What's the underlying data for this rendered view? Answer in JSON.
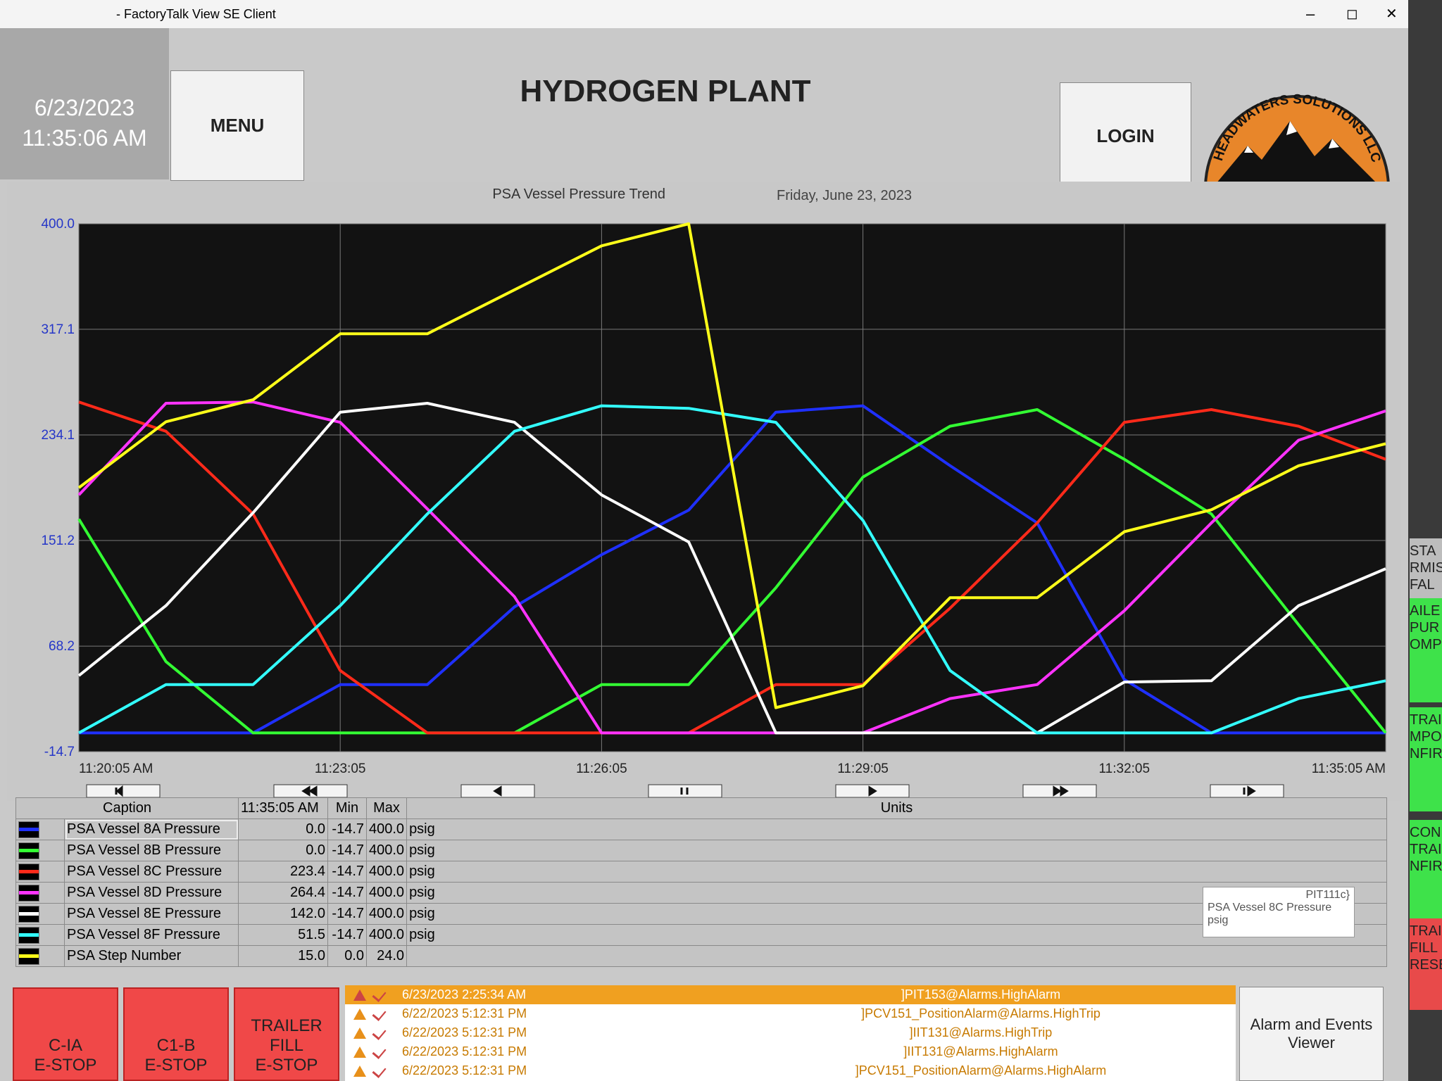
{
  "window": {
    "title": "- FactoryTalk View SE Client"
  },
  "header": {
    "date": "6/23/2023",
    "time": "11:35:06 AM",
    "menu": "MENU",
    "title": "HYDROGEN PLANT",
    "login": "LOGIN",
    "logo": "HEADWATERS SOLUTIONS LLC"
  },
  "chart_data": {
    "type": "line",
    "title": "PSA Vessel Pressure Trend",
    "subtitle": "Friday, June 23, 2023",
    "x": [
      "11:20:05",
      "11:21:05",
      "11:22:05",
      "11:23:05",
      "11:24:05",
      "11:25:05",
      "11:26:05",
      "11:27:05",
      "11:28:05",
      "11:29:05",
      "11:30:05",
      "11:31:05",
      "11:32:05",
      "11:33:05",
      "11:34:05",
      "11:35:05"
    ],
    "xticks": [
      {
        "value": "11:20:05",
        "label": "11:20:05 AM"
      },
      "11:23:05",
      "11:26:05",
      "11:29:05",
      "11:32:05",
      {
        "value": "11:35:05",
        "label": "11:35:05 AM"
      }
    ],
    "ylim": [
      -14.7,
      400
    ],
    "yticks": [
      {
        "value": 400,
        "label": "400.0"
      },
      317.1,
      234.1,
      151.2,
      68.2,
      -14.7
    ],
    "y2lim": [
      0,
      24
    ],
    "grid": true,
    "series": [
      {
        "name": "PSA Vessel 8A Pressure",
        "color": "#1f30ff",
        "values": [
          0,
          0,
          0,
          38,
          38,
          99,
          140,
          175,
          252,
          257,
          210,
          165,
          42,
          0,
          0,
          0
        ]
      },
      {
        "name": "PSA Vessel 8B Pressure",
        "color": "#33ff33",
        "values": [
          168,
          56,
          0,
          0,
          0,
          0,
          38,
          38,
          114,
          201,
          241,
          254,
          215,
          172,
          85,
          0
        ]
      },
      {
        "name": "PSA Vessel 8C Pressure",
        "color": "#ff2a1a",
        "values": [
          260,
          237,
          172,
          49,
          0,
          0,
          0,
          0,
          38,
          38,
          98,
          165,
          244,
          254,
          241,
          215
        ]
      },
      {
        "name": "PSA Vessel 8D Pressure",
        "color": "#ff33ff",
        "values": [
          187,
          259,
          260,
          244,
          176,
          107,
          0,
          0,
          0,
          0,
          27,
          38,
          96,
          165,
          230,
          253
        ]
      },
      {
        "name": "PSA Vessel 8E Pressure",
        "color": "#ffffff",
        "values": [
          45,
          100,
          173,
          252,
          259,
          244,
          187,
          150,
          0,
          0,
          0,
          0,
          40,
          41,
          100,
          129
        ]
      },
      {
        "name": "PSA Vessel 8F Pressure",
        "color": "#33ffff",
        "values": [
          0,
          38,
          38,
          100,
          172,
          237,
          257,
          255,
          244,
          167,
          49,
          0,
          0,
          0,
          27,
          41
        ]
      },
      {
        "name": "PSA Step Number",
        "color": "#ffff1a",
        "axis": "y2",
        "values": [
          12,
          15,
          16,
          19,
          19,
          21,
          23,
          24,
          2,
          3,
          7,
          7,
          10,
          11,
          13,
          14
        ]
      }
    ]
  },
  "legend_table": {
    "headers": [
      "Caption",
      "11:35:05 AM",
      "Min",
      "Max",
      "Units"
    ],
    "rows": [
      [
        "0.0",
        "-14.7",
        "400.0",
        "psig"
      ],
      [
        "0.0",
        "-14.7",
        "400.0",
        "psig"
      ],
      [
        "223.4",
        "-14.7",
        "400.0",
        "psig"
      ],
      [
        "264.4",
        "-14.7",
        "400.0",
        "psig"
      ],
      [
        "142.0",
        "-14.7",
        "400.0",
        "psig"
      ],
      [
        "51.5",
        "-14.7",
        "400.0",
        "psig"
      ],
      [
        "15.0",
        "0.0",
        "24.0"
      ]
    ]
  },
  "tooltip": {
    "tag": "PIT111c}",
    "caption": "PSA Vessel 8C Pressure",
    "units": "psig"
  },
  "estops": [
    [
      "C-IA",
      "E-STOP"
    ],
    [
      "C1-B",
      "E-STOP"
    ],
    [
      "TRAILER",
      "FILL",
      "E-STOP"
    ]
  ],
  "alarms": [
    [
      "6/23/2023 2:25:34 AM",
      "]PIT153@Alarms.HighAlarm"
    ],
    [
      "6/22/2023 5:12:31 PM",
      "]PCV151_PositionAlarm@Alarms.HighTrip"
    ],
    [
      "6/22/2023 5:12:31 PM",
      "]IIT131@Alarms.HighTrip"
    ],
    [
      "6/22/2023 5:12:31 PM",
      "]IIT131@Alarms.HighAlarm"
    ],
    [
      "6/22/2023 5:12:31 PM",
      "]PCV151_PositionAlarm@Alarms.HighAlarm"
    ]
  ],
  "alarm_viewer": "Alarm and Events Viewer",
  "side_panel": [
    [
      "STA",
      "RMIS",
      "FAL"
    ],
    [
      "AILE",
      "PUR",
      "OMP"
    ],
    [
      "TRAIL",
      "MPO",
      "NFIRM"
    ],
    [
      "CONN",
      "TRAIL",
      "NFIRM"
    ],
    [
      "TRAIL",
      "FILL",
      "RESE"
    ]
  ]
}
